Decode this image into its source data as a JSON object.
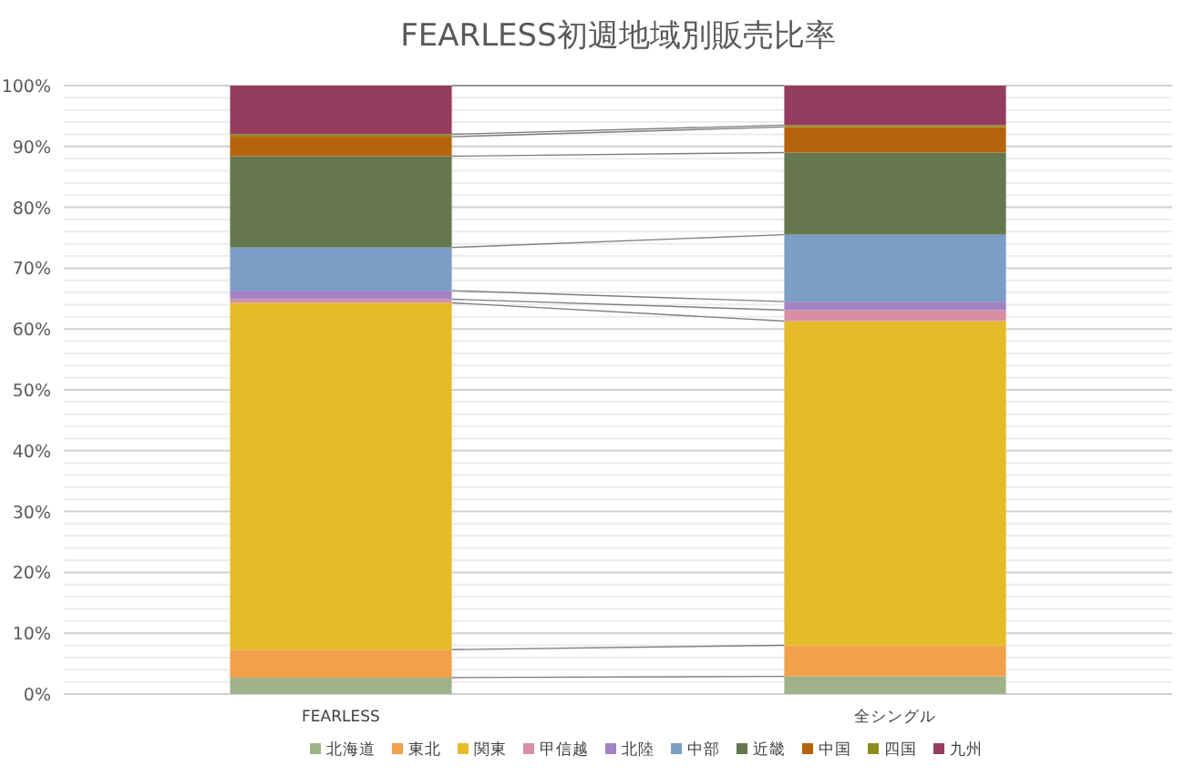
{
  "chart_data": {
    "type": "bar",
    "stacked": true,
    "title": "FEARLESS初週地域別販売比率",
    "categories": [
      "FEARLESS",
      "全シングル"
    ],
    "series": [
      {
        "name": "北海道",
        "color": "#9fb28a",
        "values": [
          2.7,
          2.9
        ]
      },
      {
        "name": "東北",
        "color": "#f0a14a",
        "values": [
          4.6,
          5.1
        ]
      },
      {
        "name": "関東",
        "color": "#e5bb27",
        "values": [
          57.0,
          53.3
        ]
      },
      {
        "name": "甲信越",
        "color": "#d68fa3",
        "values": [
          0.6,
          1.8
        ]
      },
      {
        "name": "北陸",
        "color": "#a283c4",
        "values": [
          1.4,
          1.4
        ]
      },
      {
        "name": "中部",
        "color": "#7b9dc6",
        "values": [
          7.1,
          11.0
        ]
      },
      {
        "name": "近畿",
        "color": "#65774e",
        "values": [
          15.0,
          13.5
        ]
      },
      {
        "name": "中国",
        "color": "#b5630c",
        "values": [
          3.2,
          4.2
        ]
      },
      {
        "name": "四国",
        "color": "#8d8d20",
        "values": [
          0.4,
          0.3
        ]
      },
      {
        "name": "九州",
        "color": "#953d5e",
        "values": [
          8.0,
          6.5
        ]
      }
    ],
    "ylim": [
      0,
      100
    ],
    "yticks": [
      {
        "value": 0,
        "label": "0%"
      },
      {
        "value": 10,
        "label": "10%"
      },
      {
        "value": 20,
        "label": "20%"
      },
      {
        "value": 30,
        "label": "30%"
      },
      {
        "value": 40,
        "label": "40%"
      },
      {
        "value": 50,
        "label": "50%"
      },
      {
        "value": 60,
        "label": "60%"
      },
      {
        "value": 70,
        "label": "70%"
      },
      {
        "value": 80,
        "label": "80%"
      },
      {
        "value": 90,
        "label": "90%"
      },
      {
        "value": 100,
        "label": "100%"
      }
    ],
    "grid": "y",
    "legend": "bottom"
  }
}
